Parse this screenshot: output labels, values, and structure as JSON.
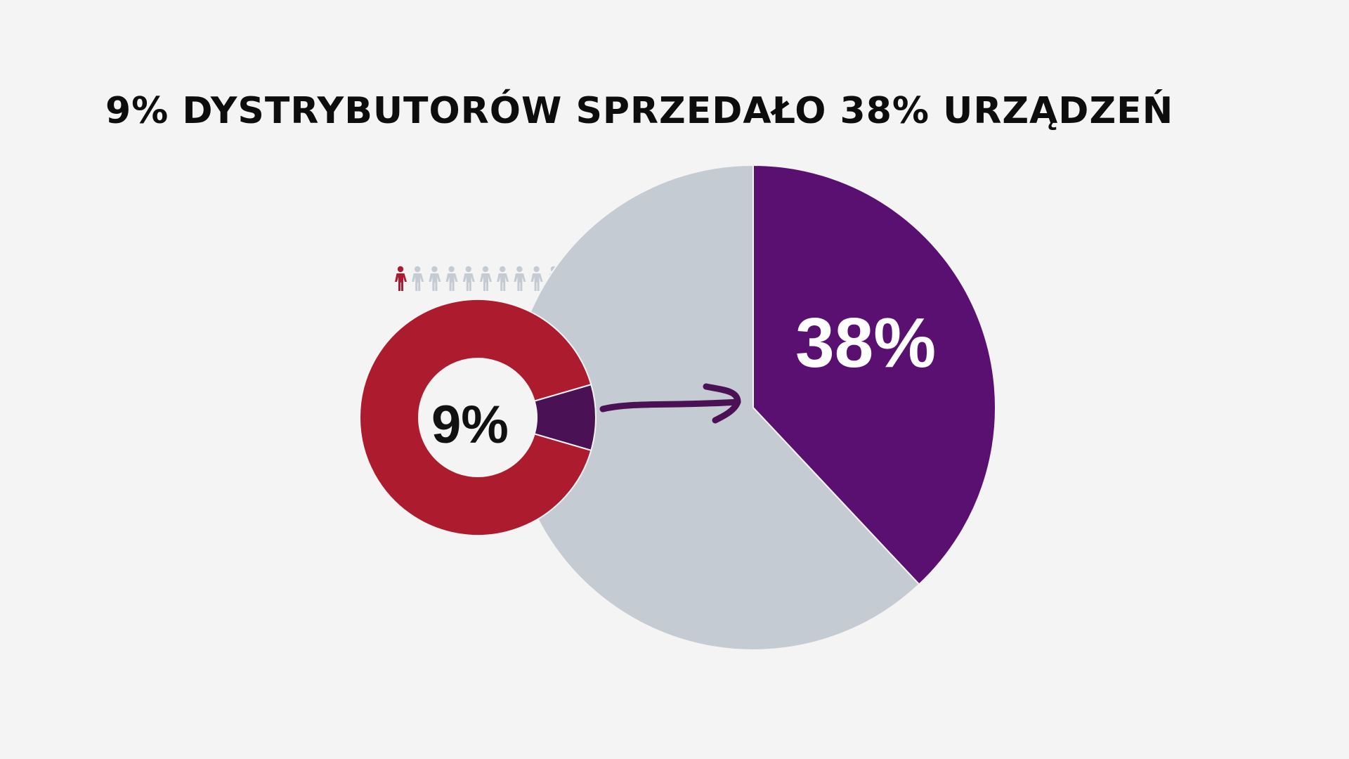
{
  "title": "9% DYSTRYBUTORÓW SPRZEDAŁO 38% URZĄDZEŃ",
  "chart_data": [
    {
      "type": "pie",
      "slices": [
        {
          "value": 38,
          "color": "#5a1070"
        },
        {
          "value": 62,
          "color": "#c5cbd3"
        }
      ],
      "data_label": "38%",
      "highlight_index": 0
    },
    {
      "type": "pie",
      "variant": "donut",
      "slices": [
        {
          "value": 9,
          "color": "#4a1155"
        },
        {
          "value": 91,
          "color": "#ad1b2e"
        }
      ],
      "data_label": "9%",
      "highlight_index": 0
    }
  ],
  "people_row": {
    "highlighted_count": 1,
    "highlight_color": "#ad1b2e",
    "base_color": "#c5cbd3",
    "icon": "person-icon"
  },
  "connector": {
    "icon": "arrow-right-icon",
    "color": "#4a1155"
  }
}
